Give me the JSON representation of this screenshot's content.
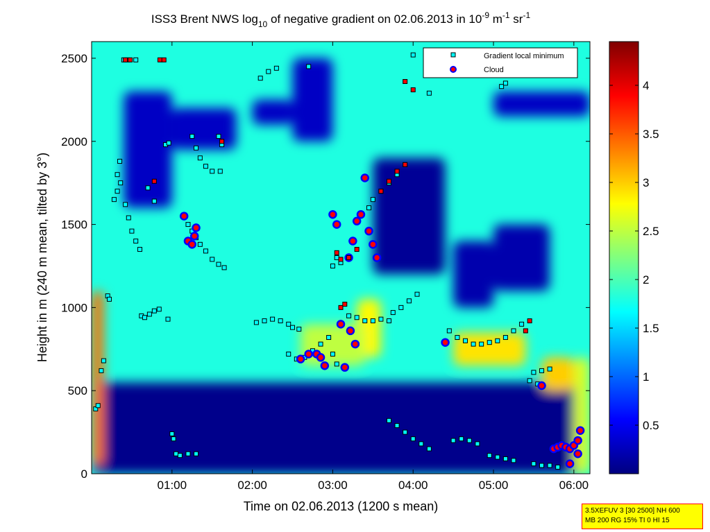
{
  "chart_data": {
    "type": "heatmap",
    "title": {
      "p1": "ISS3 Brent NWS log",
      "sub1": "10",
      "p2": " of negative gradient on 02.06.2013 in 10",
      "sup1": "-9",
      "p3": " m",
      "sup2": "-1",
      "p4": " sr",
      "sup3": "-1"
    },
    "xlabel": "Time on 02.06.2013 (1200 s mean)",
    "ylabel": "Height in m (240 m mean, tilted by 3°)",
    "xlim_hours": [
      0.0,
      6.2
    ],
    "ylim": [
      0,
      2600
    ],
    "x_ticks": [
      {
        "v": 1,
        "label": "01:00"
      },
      {
        "v": 2,
        "label": "02:00"
      },
      {
        "v": 3,
        "label": "03:00"
      },
      {
        "v": 4,
        "label": "04:00"
      },
      {
        "v": 5,
        "label": "05:00"
      },
      {
        "v": 6,
        "label": "06:00"
      }
    ],
    "y_ticks": [
      {
        "v": 0,
        "label": "0"
      },
      {
        "v": 500,
        "label": "500"
      },
      {
        "v": 1000,
        "label": "1000"
      },
      {
        "v": 1500,
        "label": "1500"
      },
      {
        "v": 2000,
        "label": "2000"
      },
      {
        "v": 2500,
        "label": "2500"
      }
    ],
    "colorbar": {
      "min": 0.0,
      "max": 4.45,
      "ticks": [
        {
          "v": 0.5,
          "label": "0.5"
        },
        {
          "v": 1,
          "label": "1"
        },
        {
          "v": 1.5,
          "label": "1.5"
        },
        {
          "v": 2,
          "label": "2"
        },
        {
          "v": 2.5,
          "label": "2.5"
        },
        {
          "v": 3,
          "label": "3"
        },
        {
          "v": 3.5,
          "label": "3.5"
        },
        {
          "v": 4,
          "label": "4"
        }
      ]
    },
    "legend": {
      "placement": "top-right",
      "entries": [
        {
          "label": "Gradient local minimum",
          "marker": "square",
          "color": "#00ffff"
        },
        {
          "label": "Cloud",
          "marker": "circle",
          "color": "#ff0000"
        }
      ]
    },
    "background_level": 1.8,
    "field_features": [
      {
        "t": [
          0.0,
          6.2
        ],
        "h": [
          0,
          550
        ],
        "level": 0.05
      },
      {
        "t": [
          0.0,
          0.15
        ],
        "h": [
          50,
          1100
        ],
        "level": 3.4
      },
      {
        "t": [
          0.4,
          1.0
        ],
        "h": [
          1600,
          2300
        ],
        "level": 0.3
      },
      {
        "t": [
          1.0,
          1.8
        ],
        "h": [
          1950,
          2200
        ],
        "level": 0.3
      },
      {
        "t": [
          2.0,
          2.5
        ],
        "h": [
          2100,
          2250
        ],
        "level": 0.3
      },
      {
        "t": [
          2.5,
          3.0
        ],
        "h": [
          2000,
          2500
        ],
        "level": 0.3
      },
      {
        "t": [
          3.5,
          4.4
        ],
        "h": [
          1200,
          1900
        ],
        "level": 0.1
      },
      {
        "t": [
          4.5,
          5.0
        ],
        "h": [
          1000,
          1400
        ],
        "level": 0.2
      },
      {
        "t": [
          5.0,
          5.7
        ],
        "h": [
          1100,
          1500
        ],
        "level": 0.2
      },
      {
        "t": [
          5.0,
          6.2
        ],
        "h": [
          2150,
          2300
        ],
        "level": 0.3
      },
      {
        "t": [
          3.3,
          3.6
        ],
        "h": [
          700,
          1050
        ],
        "level": 2.8
      },
      {
        "t": [
          4.5,
          5.4
        ],
        "h": [
          650,
          850
        ],
        "level": 2.9
      },
      {
        "t": [
          5.6,
          6.0
        ],
        "h": [
          500,
          700
        ],
        "level": 3.0
      },
      {
        "t": [
          6.0,
          6.2
        ],
        "h": [
          0,
          700
        ],
        "level": 2.6
      },
      {
        "t": [
          2.6,
          3.4
        ],
        "h": [
          650,
          900
        ],
        "level": 2.5
      }
    ],
    "series": [
      {
        "name": "Gradient local minimum",
        "marker": "square",
        "points": [
          [
            0.05,
            390
          ],
          [
            0.08,
            410
          ],
          [
            0.12,
            620
          ],
          [
            0.15,
            680
          ],
          [
            0.2,
            1070
          ],
          [
            0.22,
            1050
          ],
          [
            0.28,
            1650
          ],
          [
            0.32,
            1700
          ],
          [
            0.36,
            1750
          ],
          [
            0.42,
            1620
          ],
          [
            0.46,
            1540
          ],
          [
            0.5,
            1460
          ],
          [
            0.55,
            1400
          ],
          [
            0.6,
            1350
          ],
          [
            0.62,
            950
          ],
          [
            0.66,
            940
          ],
          [
            0.72,
            960
          ],
          [
            0.78,
            980
          ],
          [
            0.84,
            990
          ],
          [
            0.4,
            2490
          ],
          [
            0.45,
            2490
          ],
          [
            0.55,
            2490
          ],
          [
            0.35,
            1880
          ],
          [
            0.32,
            1800
          ],
          [
            0.7,
            1720
          ],
          [
            0.78,
            1640
          ],
          [
            0.92,
            1980
          ],
          [
            0.96,
            1990
          ],
          [
            1.0,
            240
          ],
          [
            1.02,
            210
          ],
          [
            1.05,
            120
          ],
          [
            1.1,
            110
          ],
          [
            1.2,
            120
          ],
          [
            1.3,
            120
          ],
          [
            1.15,
            1550
          ],
          [
            1.2,
            1500
          ],
          [
            1.25,
            1460
          ],
          [
            1.3,
            1420
          ],
          [
            1.35,
            1380
          ],
          [
            1.42,
            1340
          ],
          [
            1.5,
            1290
          ],
          [
            1.58,
            1260
          ],
          [
            1.65,
            1240
          ],
          [
            1.25,
            2030
          ],
          [
            1.3,
            1960
          ],
          [
            1.35,
            1900
          ],
          [
            1.42,
            1850
          ],
          [
            1.5,
            1820
          ],
          [
            1.58,
            2030
          ],
          [
            1.62,
            1980
          ],
          [
            2.05,
            910
          ],
          [
            2.15,
            920
          ],
          [
            2.25,
            930
          ],
          [
            2.35,
            920
          ],
          [
            2.45,
            900
          ],
          [
            2.5,
            880
          ],
          [
            2.58,
            870
          ],
          [
            2.45,
            720
          ],
          [
            2.55,
            690
          ],
          [
            2.65,
            700
          ],
          [
            2.75,
            740
          ],
          [
            2.85,
            780
          ],
          [
            2.95,
            820
          ],
          [
            2.1,
            2380
          ],
          [
            2.2,
            2420
          ],
          [
            2.3,
            2440
          ],
          [
            3.0,
            1250
          ],
          [
            3.05,
            1300
          ],
          [
            3.1,
            1270
          ],
          [
            3.0,
            720
          ],
          [
            3.05,
            660
          ],
          [
            3.2,
            950
          ],
          [
            3.3,
            940
          ],
          [
            3.4,
            920
          ],
          [
            3.5,
            920
          ],
          [
            3.6,
            930
          ],
          [
            3.7,
            920
          ],
          [
            3.75,
            970
          ],
          [
            3.85,
            1000
          ],
          [
            3.95,
            1040
          ],
          [
            4.05,
            1080
          ],
          [
            3.45,
            1600
          ],
          [
            3.5,
            1650
          ],
          [
            3.6,
            1700
          ],
          [
            3.7,
            1750
          ],
          [
            3.8,
            1800
          ],
          [
            3.7,
            320
          ],
          [
            3.8,
            290
          ],
          [
            3.9,
            250
          ],
          [
            4.0,
            210
          ],
          [
            4.1,
            180
          ],
          [
            4.2,
            150
          ],
          [
            4.5,
            200
          ],
          [
            4.6,
            210
          ],
          [
            4.7,
            200
          ],
          [
            4.8,
            180
          ],
          [
            4.45,
            860
          ],
          [
            4.55,
            820
          ],
          [
            4.65,
            800
          ],
          [
            4.75,
            780
          ],
          [
            4.85,
            780
          ],
          [
            4.95,
            790
          ],
          [
            5.05,
            800
          ],
          [
            5.15,
            820
          ],
          [
            5.25,
            860
          ],
          [
            5.35,
            900
          ],
          [
            4.95,
            110
          ],
          [
            5.05,
            100
          ],
          [
            5.15,
            90
          ],
          [
            5.25,
            80
          ],
          [
            5.5,
            610
          ],
          [
            5.6,
            620
          ],
          [
            5.7,
            630
          ],
          [
            5.45,
            560
          ],
          [
            5.55,
            540
          ],
          [
            5.5,
            60
          ],
          [
            5.6,
            50
          ],
          [
            5.7,
            50
          ],
          [
            5.8,
            40
          ],
          [
            5.1,
            2330
          ],
          [
            5.15,
            2350
          ],
          [
            4.0,
            2520
          ],
          [
            5.0,
            2520
          ],
          [
            0.95,
            930
          ],
          [
            1.6,
            1820
          ],
          [
            2.7,
            2450
          ],
          [
            4.2,
            2290
          ]
        ]
      },
      {
        "name": "Cloud",
        "marker": "circle",
        "points": [
          [
            1.15,
            1550
          ],
          [
            1.2,
            1400
          ],
          [
            1.25,
            1380
          ],
          [
            1.28,
            1430
          ],
          [
            1.3,
            1480
          ],
          [
            2.6,
            690
          ],
          [
            2.7,
            720
          ],
          [
            2.8,
            720
          ],
          [
            2.85,
            700
          ],
          [
            2.9,
            650
          ],
          [
            3.0,
            1560
          ],
          [
            3.05,
            1500
          ],
          [
            3.1,
            900
          ],
          [
            3.15,
            640
          ],
          [
            3.2,
            1300
          ],
          [
            3.25,
            1400
          ],
          [
            3.3,
            1520
          ],
          [
            3.35,
            1560
          ],
          [
            3.4,
            1780
          ],
          [
            3.45,
            1460
          ],
          [
            3.5,
            1380
          ],
          [
            3.55,
            1300
          ],
          [
            3.22,
            860
          ],
          [
            3.28,
            780
          ],
          [
            4.4,
            790
          ],
          [
            5.6,
            530
          ],
          [
            5.75,
            150
          ],
          [
            5.8,
            160
          ],
          [
            5.85,
            170
          ],
          [
            5.9,
            160
          ],
          [
            5.95,
            150
          ],
          [
            6.0,
            170
          ],
          [
            6.05,
            200
          ],
          [
            6.08,
            260
          ],
          [
            6.05,
            120
          ],
          [
            5.95,
            60
          ]
        ]
      },
      {
        "name": "",
        "marker": "square-red",
        "points": [
          [
            0.42,
            2490
          ],
          [
            0.48,
            2490
          ],
          [
            0.85,
            2490
          ],
          [
            0.9,
            2490
          ],
          [
            0.78,
            1760
          ],
          [
            1.62,
            2000
          ],
          [
            3.05,
            1330
          ],
          [
            3.1,
            1290
          ],
          [
            3.2,
            1300
          ],
          [
            3.3,
            1350
          ],
          [
            3.6,
            1700
          ],
          [
            3.7,
            1760
          ],
          [
            3.8,
            1820
          ],
          [
            3.9,
            1860
          ],
          [
            3.9,
            2360
          ],
          [
            4.0,
            2310
          ],
          [
            5.4,
            860
          ],
          [
            5.45,
            920
          ],
          [
            3.1,
            1000
          ],
          [
            3.15,
            1020
          ]
        ]
      }
    ]
  },
  "info_box": {
    "line1": "3.5XEFUV 3 [30 2500] NH 600",
    "line2": "MB 200 RG 15% TI 0 HI 15"
  }
}
